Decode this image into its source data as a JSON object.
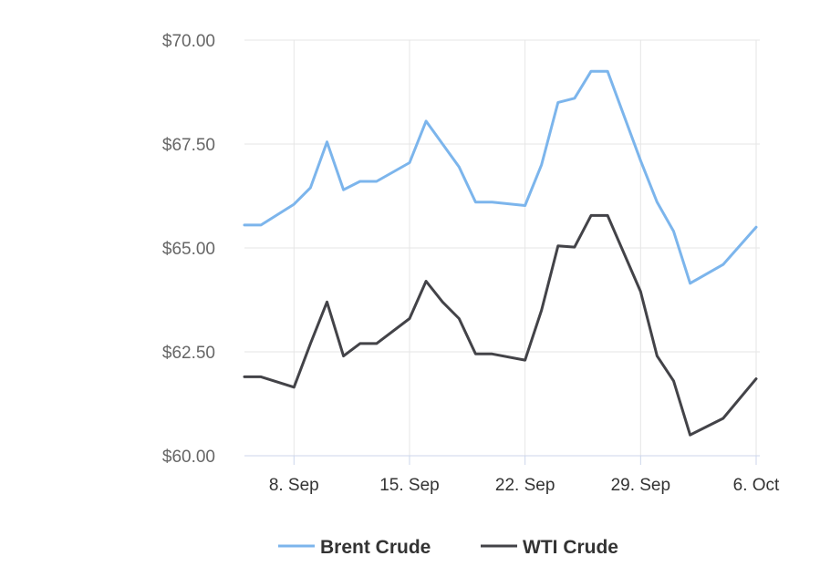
{
  "chart_data": {
    "type": "line",
    "title": "",
    "xlabel": "",
    "ylabel": "",
    "x_axis": {
      "type": "date",
      "range": [
        "2025-09-05",
        "2025-10-06"
      ],
      "ticks": [
        {
          "date": "2025-09-08",
          "label": "8. Sep"
        },
        {
          "date": "2025-09-15",
          "label": "15. Sep"
        },
        {
          "date": "2025-09-22",
          "label": "22. Sep"
        },
        {
          "date": "2025-09-29",
          "label": "29. Sep"
        },
        {
          "date": "2025-10-06",
          "label": "6. Oct"
        }
      ]
    },
    "y_axis": {
      "range": [
        60,
        70
      ],
      "ticks": [
        {
          "value": 60,
          "label": "$60.00"
        },
        {
          "value": 62.5,
          "label": "$62.50"
        },
        {
          "value": 65,
          "label": "$65.00"
        },
        {
          "value": 67.5,
          "label": "$67.50"
        },
        {
          "value": 70,
          "label": "$70.00"
        }
      ]
    },
    "grid": true,
    "legend_position": "bottom-center",
    "x": [
      "2025-09-05",
      "2025-09-06",
      "2025-09-08",
      "2025-09-09",
      "2025-09-10",
      "2025-09-11",
      "2025-09-12",
      "2025-09-13",
      "2025-09-15",
      "2025-09-16",
      "2025-09-17",
      "2025-09-18",
      "2025-09-19",
      "2025-09-20",
      "2025-09-22",
      "2025-09-23",
      "2025-09-24",
      "2025-09-25",
      "2025-09-26",
      "2025-09-27",
      "2025-09-29",
      "2025-09-30",
      "2025-10-01",
      "2025-10-02",
      "2025-10-04",
      "2025-10-06"
    ],
    "series": [
      {
        "name": "Brent Crude",
        "color": "#7cb5ec",
        "values": [
          65.55,
          65.55,
          66.05,
          66.45,
          67.55,
          66.4,
          66.6,
          66.6,
          67.05,
          68.05,
          67.5,
          66.95,
          66.1,
          66.1,
          66.02,
          67.0,
          68.5,
          68.6,
          69.25,
          69.25,
          67.1,
          66.1,
          65.4,
          64.15,
          64.6,
          65.5
        ],
        "connect_out_of_range": true
      },
      {
        "name": "WTI Crude",
        "color": "#434348",
        "values": [
          61.9,
          61.9,
          61.65,
          62.7,
          63.7,
          62.4,
          62.7,
          62.7,
          63.3,
          64.2,
          63.7,
          63.3,
          62.45,
          62.45,
          62.3,
          63.5,
          65.05,
          65.02,
          65.78,
          65.78,
          63.95,
          62.4,
          61.8,
          60.5,
          60.9,
          61.85
        ]
      }
    ]
  }
}
